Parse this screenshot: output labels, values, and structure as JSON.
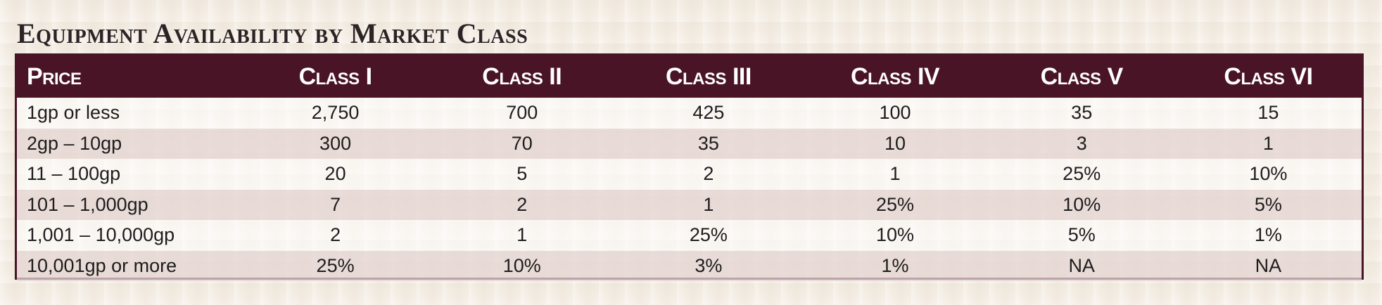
{
  "title": "Equipment Availability by Market Class",
  "table": {
    "headers": [
      "Price",
      "Class I",
      "Class II",
      "Class III",
      "Class IV",
      "Class V",
      "Class VI"
    ],
    "rows": [
      [
        "1gp or less",
        "2,750",
        "700",
        "425",
        "100",
        "35",
        "15"
      ],
      [
        "2gp – 10gp",
        "300",
        "70",
        "35",
        "10",
        "3",
        "1"
      ],
      [
        "11 – 100gp",
        "20",
        "5",
        "2",
        "1",
        "25%",
        "10%"
      ],
      [
        "101 – 1,000gp",
        "7",
        "2",
        "1",
        "25%",
        "10%",
        "5%"
      ],
      [
        "1,001 – 10,000gp",
        "2",
        "1",
        "25%",
        "10%",
        "5%",
        "1%"
      ],
      [
        "10,001gp or more",
        "25%",
        "10%",
        "3%",
        "1%",
        "NA",
        "NA"
      ]
    ]
  },
  "colors": {
    "header_bg": "#4a1427",
    "header_text": "#ffffff",
    "row_odd": "#f7f2ec",
    "row_even": "#e6d6d4",
    "page_bg": "#f4eee5",
    "title_text": "#2b2325"
  }
}
